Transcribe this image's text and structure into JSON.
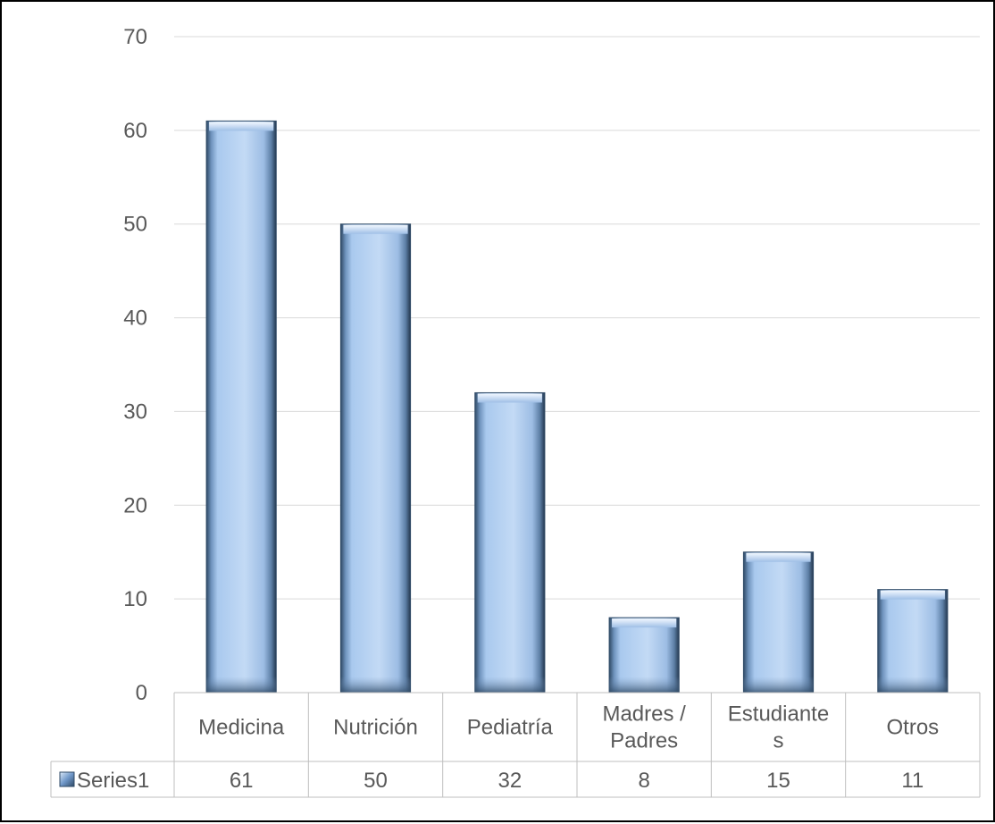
{
  "chart_data": {
    "type": "bar",
    "categories": [
      [
        "Medicina"
      ],
      [
        "Nutrición"
      ],
      [
        "Pediatría"
      ],
      [
        "Madres /",
        "Padres"
      ],
      [
        "Estudiante",
        "s"
      ],
      [
        "Otros"
      ]
    ],
    "series": [
      {
        "name": "Series1",
        "values": [
          61,
          50,
          32,
          8,
          15,
          11
        ]
      }
    ],
    "ylim": [
      0,
      70
    ],
    "yticks": [
      0,
      10,
      20,
      30,
      40,
      50,
      60,
      70
    ],
    "grid": true,
    "legend": "data-table",
    "data_table": true,
    "colors": {
      "bar_light": "#c6dcf5",
      "bar_mid": "#9dc0ea",
      "bar_dark": "#2f4a66",
      "grid": "#d9d9d9",
      "table_border": "#bfbfbf",
      "legend_key": "#5b8ac2"
    }
  }
}
